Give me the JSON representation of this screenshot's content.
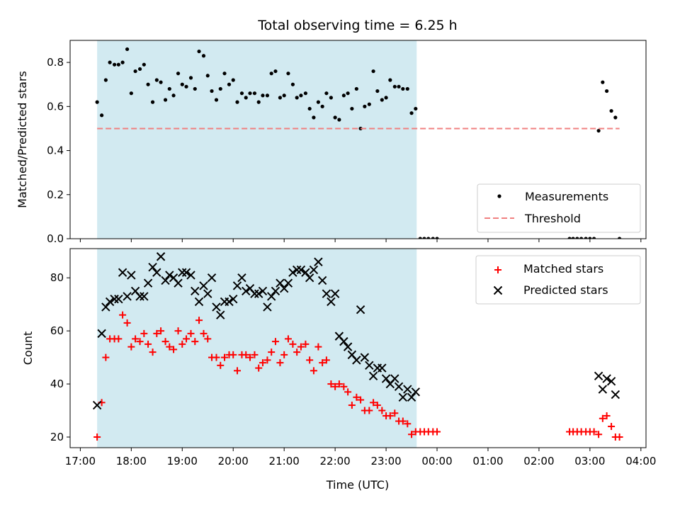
{
  "figure": {
    "title": "Total observing time = 6.25 h",
    "xlabel": "Time (UTC)",
    "x_tick_labels": [
      "17:00",
      "18:00",
      "19:00",
      "20:00",
      "21:00",
      "22:00",
      "23:00",
      "00:00",
      "01:00",
      "02:00",
      "03:00",
      "04:00"
    ]
  },
  "chart_data": [
    {
      "type": "scatter",
      "ylabel": "Matched/Predicted stars",
      "ylim": [
        0.0,
        0.9
      ],
      "y_ticks": [
        0.0,
        0.2,
        0.4,
        0.6,
        0.8
      ],
      "y_tick_labels": [
        "0.0",
        "0.2",
        "0.4",
        "0.6",
        "0.8"
      ],
      "xlim_hours": [
        16.8,
        28.1
      ],
      "shaded_span_hours": [
        17.33,
        23.6
      ],
      "legend": "lower-right",
      "colors": {
        "measurements": "#000000",
        "threshold": "#f08080",
        "shade": "#add8e6"
      },
      "series": [
        {
          "name": "Measurements",
          "x": [
            17.33,
            17.42,
            17.5,
            17.58,
            17.67,
            17.75,
            17.83,
            17.92,
            18.0,
            18.08,
            18.17,
            18.25,
            18.33,
            18.42,
            18.5,
            18.58,
            18.67,
            18.75,
            18.83,
            18.92,
            19.0,
            19.08,
            19.17,
            19.25,
            19.33,
            19.42,
            19.5,
            19.58,
            19.67,
            19.75,
            19.83,
            19.92,
            20.0,
            20.08,
            20.17,
            20.25,
            20.33,
            20.42,
            20.5,
            20.58,
            20.67,
            20.75,
            20.83,
            20.92,
            21.0,
            21.08,
            21.17,
            21.25,
            21.33,
            21.42,
            21.5,
            21.58,
            21.67,
            21.75,
            21.83,
            21.92,
            22.0,
            22.08,
            22.17,
            22.25,
            22.33,
            22.42,
            22.5,
            22.58,
            22.67,
            22.75,
            22.83,
            22.92,
            23.0,
            23.08,
            23.17,
            23.25,
            23.33,
            23.42,
            23.5,
            23.58,
            23.67,
            23.75,
            23.83,
            23.92,
            24.0,
            26.6,
            26.67,
            26.75,
            26.83,
            26.92,
            27.0,
            27.08,
            27.17,
            27.25,
            27.33,
            27.42,
            27.5,
            27.58
          ],
          "y": [
            0.62,
            0.56,
            0.72,
            0.8,
            0.79,
            0.79,
            0.8,
            0.86,
            0.66,
            0.76,
            0.77,
            0.79,
            0.7,
            0.62,
            0.72,
            0.71,
            0.63,
            0.68,
            0.65,
            0.75,
            0.7,
            0.69,
            0.73,
            0.68,
            0.85,
            0.83,
            0.74,
            0.67,
            0.63,
            0.68,
            0.75,
            0.7,
            0.72,
            0.62,
            0.66,
            0.64,
            0.66,
            0.66,
            0.62,
            0.65,
            0.65,
            0.75,
            0.76,
            0.64,
            0.65,
            0.75,
            0.7,
            0.64,
            0.65,
            0.66,
            0.59,
            0.55,
            0.62,
            0.6,
            0.66,
            0.64,
            0.55,
            0.54,
            0.65,
            0.66,
            0.59,
            0.68,
            0.5,
            0.6,
            0.61,
            0.76,
            0.67,
            0.63,
            0.64,
            0.72,
            0.69,
            0.69,
            0.68,
            0.68,
            0.57,
            0.59,
            0.0,
            0.0,
            0.0,
            0.0,
            0.0,
            0.0,
            0.0,
            0.0,
            0.0,
            0.0,
            0.0,
            0.0,
            0.49,
            0.71,
            0.67,
            0.58,
            0.55,
            0.0
          ]
        },
        {
          "name": "Threshold",
          "style": "dashed",
          "x": [
            17.33,
            27.58
          ],
          "y": [
            0.5,
            0.5
          ]
        }
      ]
    },
    {
      "type": "scatter",
      "ylabel": "Count",
      "ylim": [
        16,
        91
      ],
      "y_ticks": [
        20,
        40,
        60,
        80
      ],
      "y_tick_labels": [
        "20",
        "40",
        "60",
        "80"
      ],
      "xlim_hours": [
        16.8,
        28.1
      ],
      "shaded_span_hours": [
        17.33,
        23.6
      ],
      "legend": "top-right",
      "colors": {
        "matched": "#ff0000",
        "predicted": "#000000",
        "shade": "#add8e6"
      },
      "series": [
        {
          "name": "Matched stars",
          "marker": "plus",
          "x": [
            17.33,
            17.42,
            17.5,
            17.58,
            17.67,
            17.75,
            17.83,
            17.92,
            18.0,
            18.08,
            18.17,
            18.25,
            18.33,
            18.42,
            18.5,
            18.58,
            18.67,
            18.75,
            18.83,
            18.92,
            19.0,
            19.08,
            19.17,
            19.25,
            19.33,
            19.42,
            19.5,
            19.58,
            19.67,
            19.75,
            19.83,
            19.92,
            20.0,
            20.08,
            20.17,
            20.25,
            20.33,
            20.42,
            20.5,
            20.58,
            20.67,
            20.75,
            20.83,
            20.92,
            21.0,
            21.08,
            21.17,
            21.25,
            21.33,
            21.42,
            21.5,
            21.58,
            21.67,
            21.75,
            21.83,
            21.92,
            22.0,
            22.08,
            22.17,
            22.25,
            22.33,
            22.42,
            22.5,
            22.58,
            22.67,
            22.75,
            22.83,
            22.92,
            23.0,
            23.08,
            23.17,
            23.25,
            23.33,
            23.42,
            23.5,
            23.58,
            23.67,
            23.75,
            23.83,
            23.92,
            24.0,
            26.6,
            26.67,
            26.75,
            26.83,
            26.92,
            27.0,
            27.08,
            27.17,
            27.25,
            27.33,
            27.42,
            27.5,
            27.58
          ],
          "y": [
            20,
            33,
            50,
            57,
            57,
            57,
            66,
            63,
            54,
            57,
            56,
            59,
            55,
            52,
            59,
            60,
            56,
            54,
            53,
            60,
            55,
            57,
            59,
            56,
            64,
            59,
            57,
            50,
            50,
            47,
            50,
            51,
            51,
            45,
            51,
            51,
            50,
            51,
            46,
            48,
            49,
            52,
            56,
            48,
            51,
            57,
            55,
            52,
            54,
            55,
            49,
            45,
            54,
            48,
            49,
            40,
            39,
            40,
            39,
            37,
            32,
            35,
            34,
            30,
            30,
            33,
            32,
            30,
            28,
            28,
            29,
            26,
            26,
            25,
            21,
            22,
            22,
            22,
            22,
            22,
            22,
            22,
            22,
            22,
            22,
            22,
            22,
            22,
            21,
            27,
            28,
            24,
            20,
            20
          ]
        },
        {
          "name": "Predicted stars",
          "marker": "x",
          "x": [
            17.33,
            17.42,
            17.5,
            17.58,
            17.67,
            17.75,
            17.83,
            17.92,
            18.0,
            18.08,
            18.17,
            18.25,
            18.33,
            18.42,
            18.5,
            18.58,
            18.67,
            18.75,
            18.83,
            18.92,
            19.0,
            19.08,
            19.17,
            19.25,
            19.33,
            19.42,
            19.5,
            19.58,
            19.67,
            19.75,
            19.83,
            19.92,
            20.0,
            20.08,
            20.17,
            20.25,
            20.33,
            20.42,
            20.5,
            20.58,
            20.67,
            20.75,
            20.83,
            20.92,
            21.0,
            21.08,
            21.17,
            21.25,
            21.33,
            21.42,
            21.5,
            21.58,
            21.67,
            21.75,
            21.83,
            21.92,
            22.0,
            22.08,
            22.17,
            22.25,
            22.33,
            22.42,
            22.5,
            22.58,
            22.67,
            22.75,
            22.83,
            22.92,
            23.0,
            23.08,
            23.17,
            23.25,
            23.33,
            23.42,
            23.5,
            23.58,
            27.17,
            27.25,
            27.33,
            27.42,
            27.5
          ],
          "y": [
            32,
            59,
            69,
            71,
            72,
            72,
            82,
            73,
            81,
            75,
            73,
            73,
            78,
            84,
            82,
            88,
            79,
            81,
            80,
            78,
            82,
            82,
            81,
            75,
            71,
            77,
            74,
            80,
            69,
            66,
            71,
            71,
            72,
            77,
            80,
            75,
            76,
            74,
            74,
            75,
            69,
            73,
            75,
            78,
            76,
            78,
            82,
            83,
            83,
            82,
            80,
            83,
            86,
            79,
            74,
            71,
            74,
            58,
            56,
            54,
            51,
            49,
            68,
            50,
            47,
            43,
            46,
            46,
            42,
            40,
            42,
            39,
            35,
            38,
            35,
            37,
            43,
            38,
            42,
            41,
            36
          ]
        }
      ]
    }
  ]
}
